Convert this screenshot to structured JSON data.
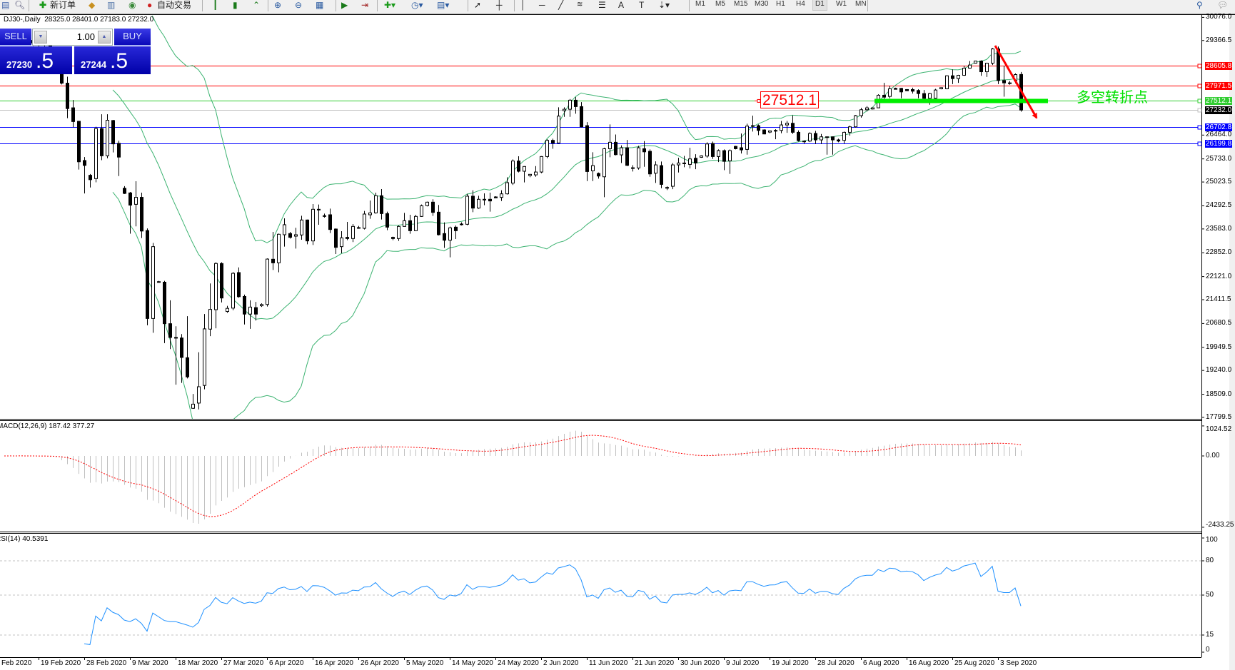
{
  "toolbar": {
    "new_order": "新订单",
    "autotrading": "自动交易",
    "timeframes": [
      "M1",
      "M5",
      "M15",
      "M30",
      "H1",
      "H4",
      "D1",
      "W1",
      "MN"
    ],
    "active_timeframe": "D1"
  },
  "chart": {
    "symbol": "DJ30-,Daily",
    "ohlc_readout": "28325.0 28401.0 27183.0 27232.0"
  },
  "trade_panel": {
    "sell_label": "SELL",
    "buy_label": "BUY",
    "lot": "1.00",
    "sell_price_main": "27230",
    "sell_price_frac": ".5",
    "buy_price_main": "27244",
    "buy_price_frac": ".5"
  },
  "annotations": {
    "level_label": "27512.1",
    "text": "多空转折点"
  },
  "price_axis": {
    "ticks": [
      "30076.0",
      "29366.5",
      "26464.0",
      "25733.0",
      "25023.5",
      "24292.5",
      "23583.0",
      "22852.0",
      "22121.0",
      "21411.5",
      "20680.5",
      "19949.5",
      "19240.0",
      "18509.0",
      "17799.5"
    ],
    "levels": [
      {
        "value": "28605.8",
        "color": "#ff0000"
      },
      {
        "value": "27971.5",
        "color": "#ff0000"
      },
      {
        "value": "27512.1",
        "color": "#32cd32"
      },
      {
        "value": "27232.0",
        "color": "#000000"
      },
      {
        "value": "26702.8",
        "color": "#0000ff"
      },
      {
        "value": "26199.8",
        "color": "#0000ff"
      }
    ]
  },
  "macd": {
    "label": "MACD(12,26,9) 187.42 377.27",
    "axis": [
      "1024.52",
      "0.00",
      "-2433.25"
    ]
  },
  "rsi": {
    "label": "RSI(14) 40.5391",
    "axis": [
      "100",
      "80",
      "50",
      "15",
      "0"
    ]
  },
  "dates": [
    "Feb 2020",
    "19 Feb 2020",
    "28 Feb 2020",
    "9 Mar 2020",
    "18 Mar 2020",
    "27 Mar 2020",
    "6 Apr 2020",
    "16 Apr 2020",
    "26 Apr 2020",
    "5 May 2020",
    "14 May 2020",
    "24 May 2020",
    "2 Jun 2020",
    "11 Jun 2020",
    "21 Jun 2020",
    "30 Jun 2020",
    "9 Jul 2020",
    "19 Jul 2020",
    "28 Jul 2020",
    "6 Aug 2020",
    "16 Aug 2020",
    "25 Aug 2020",
    "3 Sep 2020"
  ],
  "colors": {
    "bands": "#3cb371",
    "macd_hist": "#c0c0c0",
    "macd_signal": "#ff0000",
    "rsi": "#1e90ff",
    "arrow": "#ff0000",
    "pivot_line": "#00ee00"
  },
  "chart_data": {
    "type": "candlestick",
    "symbol": "DJ30-",
    "timeframe": "Daily",
    "ylim": [
      17756,
      30128
    ],
    "grid": false,
    "indicators": [
      "Bollinger Bands",
      "MACD(12,26,9)",
      "RSI(14)"
    ],
    "ohlc": [
      [
        29300,
        29420,
        29250,
        29380
      ],
      [
        29380,
        29460,
        29300,
        29420
      ],
      [
        29420,
        29500,
        29330,
        29350
      ],
      [
        29350,
        29480,
        29300,
        29440
      ],
      [
        29440,
        29520,
        29260,
        29290
      ],
      [
        29290,
        29400,
        29200,
        29370
      ],
      [
        29370,
        29420,
        29180,
        29220
      ],
      [
        29220,
        29380,
        29150,
        29340
      ],
      [
        29340,
        29360,
        29080,
        29150
      ],
      [
        29150,
        29180,
        28950,
        28990
      ],
      [
        28950,
        28990,
        28018,
        28057
      ],
      [
        28057,
        28256,
        26982,
        27277
      ],
      [
        27301,
        27540,
        26704,
        26879
      ],
      [
        26887,
        26900,
        25405,
        25644
      ],
      [
        25684,
        25788,
        24673,
        25533
      ],
      [
        25230,
        25270,
        24856,
        25095
      ],
      [
        25127,
        26719,
        25015,
        26664
      ],
      [
        26664,
        27102,
        25692,
        25827
      ],
      [
        25827,
        27102,
        25750,
        26919
      ],
      [
        26911,
        26930,
        25931,
        26194
      ],
      [
        26210,
        26289,
        25206,
        25788
      ],
      [
        24832,
        24896,
        24657,
        24673
      ],
      [
        24689,
        24720,
        23438,
        24314
      ],
      [
        24338,
        25047,
        23661,
        24553
      ],
      [
        24553,
        24697,
        23303,
        23518
      ],
      [
        23534,
        23598,
        20627,
        20834
      ],
      [
        20834,
        23152,
        20396,
        23040
      ],
      [
        21965,
        21990,
        21940,
        21965
      ],
      [
        21949,
        21990,
        20078,
        20675
      ],
      [
        20675,
        21392,
        19894,
        20253
      ],
      [
        20253,
        20595,
        18803,
        20253
      ],
      [
        20237,
        20356,
        18859,
        19639
      ],
      [
        19631,
        20906,
        18994,
        19042
      ],
      [
        18078,
        18517,
        18062,
        18206
      ],
      [
        18238,
        19799,
        18046,
        18740
      ],
      [
        18780,
        20970,
        18660,
        20516
      ],
      [
        20508,
        21909,
        20292,
        21113
      ],
      [
        21105,
        22562,
        20532,
        22522
      ],
      [
        22522,
        22562,
        21328,
        21463
      ],
      [
        21049,
        21224,
        21009,
        21145
      ],
      [
        21153,
        22260,
        21089,
        22220
      ],
      [
        22244,
        22403,
        21471,
        21503
      ],
      [
        21511,
        21567,
        20651,
        20969
      ],
      [
        20969,
        21392,
        20516,
        21185
      ],
      [
        21169,
        21344,
        20770,
        20969
      ],
      [
        21224,
        21300,
        21190,
        21264
      ],
      [
        21264,
        22680,
        21200,
        22658
      ],
      [
        22653,
        23492,
        22324,
        22543
      ],
      [
        22543,
        23440,
        22251,
        23420
      ],
      [
        23405,
        23909,
        23040,
        23712
      ],
      [
        23441,
        23492,
        23288,
        23325
      ],
      [
        23361,
        23617,
        22981,
        23405
      ],
      [
        23398,
        23989,
        23252,
        23858
      ],
      [
        23858,
        23870,
        23113,
        23215
      ],
      [
        23215,
        24347,
        23091,
        24186
      ],
      [
        24186,
        24332,
        23712,
        24164
      ],
      [
        23989,
        24054,
        23931,
        23989
      ],
      [
        24018,
        24208,
        23456,
        23566
      ],
      [
        23580,
        23600,
        22814,
        23018
      ],
      [
        23040,
        23514,
        22836,
        23310
      ],
      [
        23325,
        23799,
        23237,
        23288
      ],
      [
        23288,
        23734,
        23179,
        23660
      ],
      [
        23624,
        23675,
        23587,
        23602
      ],
      [
        23602,
        24135,
        23566,
        24040
      ],
      [
        24018,
        24456,
        23894,
        24076
      ],
      [
        24076,
        24697,
        24054,
        24602
      ],
      [
        24602,
        24806,
        23872,
        24054
      ],
      [
        24054,
        24113,
        23544,
        23638
      ],
      [
        23325,
        23347,
        23237,
        23288
      ],
      [
        23288,
        23690,
        23215,
        23660
      ],
      [
        23660,
        24076,
        23653,
        23836
      ],
      [
        23836,
        24018,
        23434,
        23529
      ],
      [
        23529,
        24018,
        23514,
        23967
      ],
      [
        23967,
        24332,
        23952,
        24296
      ],
      [
        24296,
        24420,
        24274,
        24405
      ],
      [
        24405,
        24493,
        23982,
        24091
      ],
      [
        24098,
        24318,
        23383,
        23405
      ],
      [
        23441,
        23784,
        23003,
        23237
      ],
      [
        23237,
        23653,
        22712,
        23617
      ],
      [
        23638,
        23690,
        23274,
        23529
      ],
      [
        23734,
        23784,
        23690,
        23734
      ],
      [
        23726,
        24660,
        23697,
        24588
      ],
      [
        24588,
        24770,
        24098,
        24223
      ],
      [
        24223,
        24602,
        24201,
        24493
      ],
      [
        24493,
        24675,
        24310,
        24493
      ],
      [
        24493,
        24697,
        24113,
        24442
      ],
      [
        24566,
        24588,
        24530,
        24537
      ],
      [
        24551,
        24770,
        24442,
        24660
      ],
      [
        24660,
        25171,
        24639,
        25004
      ],
      [
        24989,
        25719,
        24931,
        25668
      ],
      [
        25668,
        25814,
        25318,
        25354
      ],
      [
        25354,
        25510,
        25011,
        25500
      ],
      [
        25223,
        25270,
        25171,
        25259
      ],
      [
        25242,
        25512,
        25184,
        25330
      ],
      [
        25330,
        25820,
        25294,
        25805
      ],
      [
        25805,
        26337,
        25753,
        26301
      ],
      [
        26301,
        26352,
        26045,
        26221
      ],
      [
        26221,
        27316,
        26206,
        27046
      ],
      [
        27213,
        27316,
        27024,
        27257
      ],
      [
        27257,
        27571,
        27024,
        27535
      ],
      [
        27535,
        27630,
        27119,
        27338
      ],
      [
        27338,
        27476,
        26702,
        26717
      ],
      [
        26753,
        26863,
        25053,
        25345
      ],
      [
        25367,
        25936,
        25053,
        25527
      ],
      [
        25286,
        25316,
        25126,
        25206
      ],
      [
        25184,
        26075,
        24556,
        26045
      ],
      [
        26045,
        26790,
        25783,
        26243
      ],
      [
        26243,
        26483,
        25841,
        25863
      ],
      [
        25856,
        26148,
        25607,
        26075
      ],
      [
        26075,
        26316,
        25512,
        25534
      ],
      [
        25461,
        25540,
        25345,
        25461
      ],
      [
        25454,
        26133,
        25403,
        26075
      ],
      [
        26045,
        26279,
        25490,
        25950
      ],
      [
        25965,
        26024,
        25184,
        25272
      ],
      [
        25294,
        25658,
        24994,
        25549
      ],
      [
        25527,
        25651,
        24834,
        24950
      ],
      [
        24856,
        24892,
        24775,
        24856
      ],
      [
        24892,
        25607,
        24804,
        25549
      ],
      [
        25549,
        25768,
        25316,
        25607
      ],
      [
        25607,
        25826,
        25476,
        25607
      ],
      [
        25564,
        26075,
        25440,
        25732
      ],
      [
        25753,
        25877,
        25418,
        25607
      ],
      [
        25783,
        25840,
        25768,
        25826
      ],
      [
        25819,
        26243,
        25768,
        26191
      ],
      [
        26206,
        26265,
        25732,
        25805
      ],
      [
        25805,
        26024,
        25636,
        25987
      ],
      [
        25987,
        26024,
        25388,
        25658
      ],
      [
        25673,
        26024,
        25272,
        25987
      ],
      [
        26118,
        26133,
        26024,
        26045
      ],
      [
        26075,
        26513,
        25899,
        26009
      ],
      [
        26024,
        26812,
        25863,
        26739
      ],
      [
        26753,
        27060,
        26571,
        26753
      ],
      [
        26753,
        26790,
        26461,
        26607
      ],
      [
        26622,
        26640,
        26490,
        26498
      ],
      [
        26556,
        26600,
        26520,
        26593
      ],
      [
        26607,
        26644,
        26337,
        26607
      ],
      [
        26607,
        26899,
        26520,
        26775
      ],
      [
        26775,
        26899,
        26535,
        26826
      ],
      [
        26826,
        27068,
        26498,
        26549
      ],
      [
        26549,
        26607,
        26265,
        26294
      ],
      [
        26280,
        26300,
        26207,
        26280
      ],
      [
        26280,
        26549,
        26250,
        26513
      ],
      [
        26513,
        26593,
        26192,
        26316
      ],
      [
        26316,
        26498,
        26192,
        26411
      ],
      [
        26411,
        26420,
        25864,
        26411
      ],
      [
        26411,
        26420,
        25864,
        26316
      ],
      [
        26316,
        26353,
        26243,
        26280
      ],
      [
        26302,
        26571,
        26207,
        26549
      ],
      [
        26549,
        26753,
        26447,
        26717
      ],
      [
        26717,
        27082,
        26695,
        27060
      ],
      [
        27060,
        27300,
        27000,
        27242
      ],
      [
        27242,
        27351,
        27191,
        27300
      ],
      [
        27264,
        27310,
        27250,
        27300
      ],
      [
        27300,
        27716,
        27300,
        27687
      ],
      [
        27687,
        28066,
        27570,
        27628
      ],
      [
        27650,
        27978,
        27592,
        27884
      ],
      [
        27898,
        27920,
        27860,
        27869
      ],
      [
        27898,
        27910,
        27592,
        27789
      ],
      [
        27862,
        27875,
        27815,
        27825
      ],
      [
        27862,
        27920,
        27738,
        27811
      ],
      [
        27833,
        27869,
        27592,
        27738
      ],
      [
        27738,
        27847,
        27555,
        27592
      ],
      [
        27592,
        27760,
        27395,
        27738
      ],
      [
        27592,
        27884,
        27577,
        27847
      ],
      [
        27884,
        27930,
        27870,
        27920
      ],
      [
        27884,
        28299,
        27869,
        28284
      ],
      [
        28284,
        28481,
        28029,
        28197
      ],
      [
        28197,
        28313,
        28066,
        28299
      ],
      [
        28299,
        28591,
        28284,
        28518
      ],
      [
        28518,
        28737,
        28503,
        28613
      ],
      [
        28671,
        28745,
        28660,
        28737
      ],
      [
        28737,
        28758,
        28284,
        28408
      ],
      [
        28408,
        28686,
        28248,
        28671
      ],
      [
        28671,
        29137,
        28613,
        29108
      ],
      [
        29108,
        29181,
        28029,
        28139
      ],
      [
        28139,
        28591,
        27643,
        28066
      ],
      [
        28066,
        28124,
        28008,
        28066
      ],
      [
        28139,
        28357,
        28051,
        28321
      ],
      [
        28325,
        28401,
        27183,
        27232
      ]
    ],
    "horizontal_levels": [
      28605.8,
      27971.5,
      27512.1,
      27232.0,
      26702.8,
      26199.8
    ],
    "macd_range": [
      -2433.25,
      1024.52
    ],
    "macd_last": {
      "main": 187.42,
      "signal": 377.27
    },
    "rsi_levels": [
      80,
      50,
      15
    ],
    "rsi_last": 40.5391
  }
}
